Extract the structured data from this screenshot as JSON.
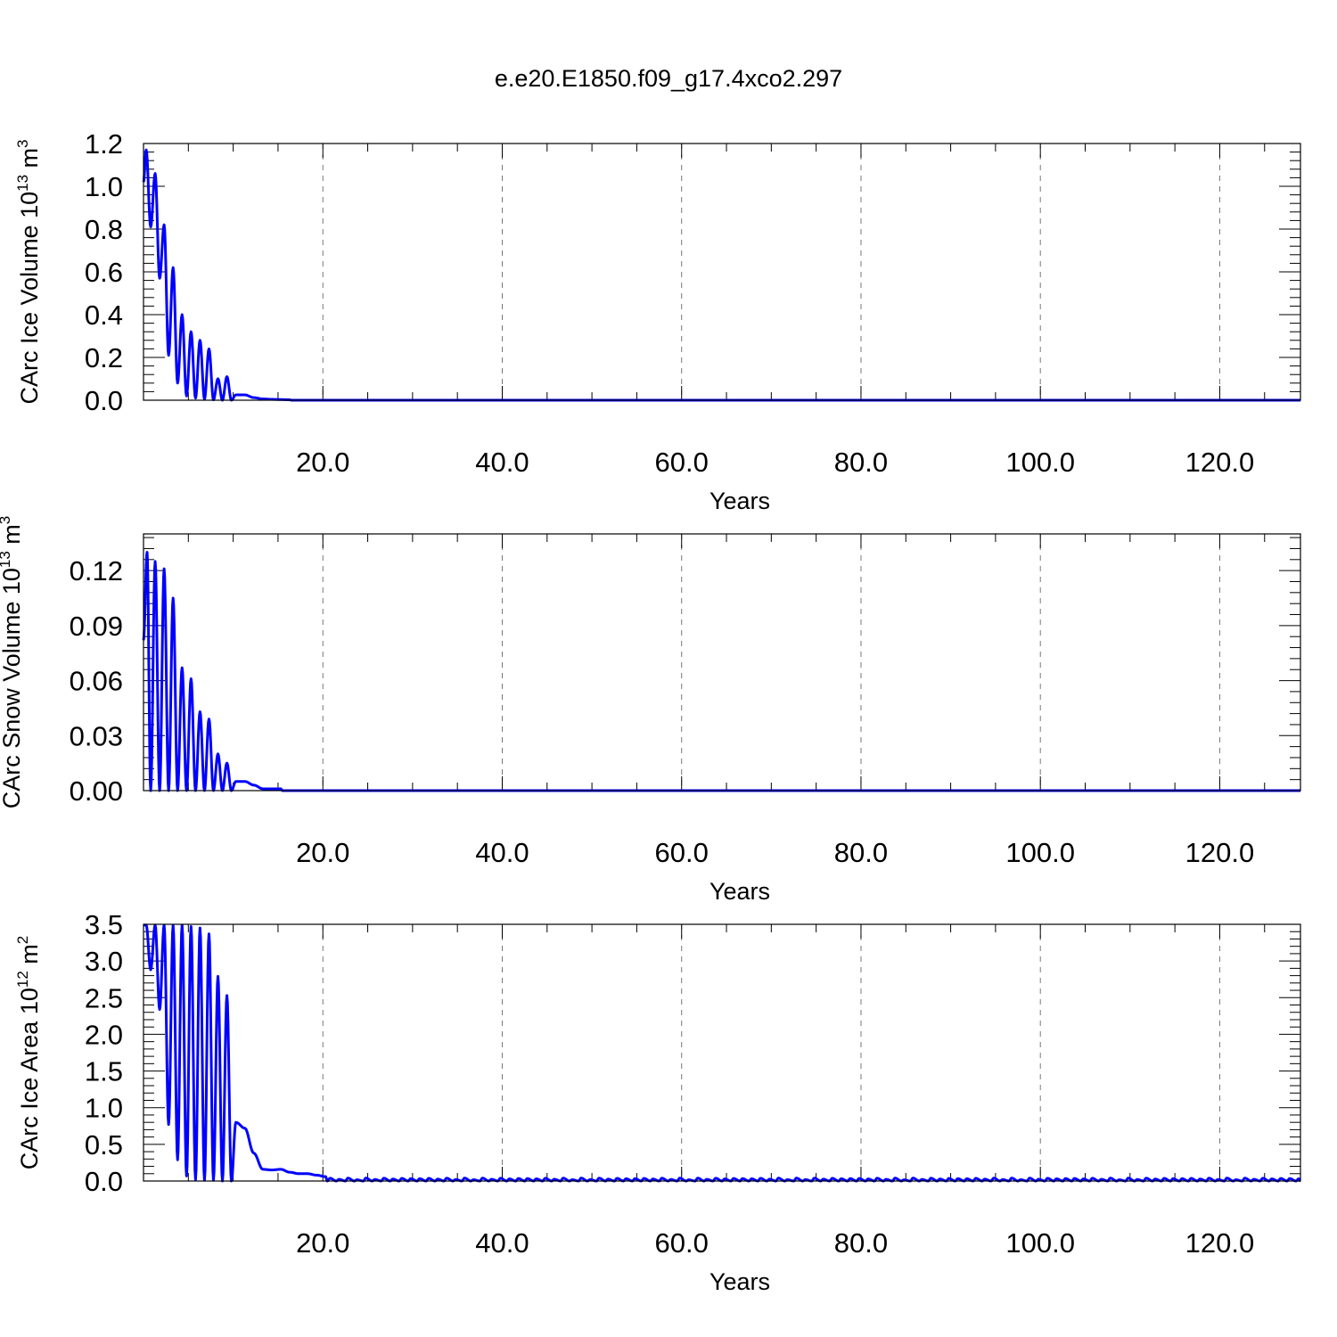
{
  "title": "e.e20.E1850.f09_g17.4xco2.297",
  "colors": {
    "series": "#0000ff",
    "axis": "#000000",
    "grid": "#777777"
  },
  "chart_data": [
    {
      "type": "line",
      "xlabel": "Years",
      "ylabel": "CArc Ice Volume 10",
      "ylabel_exp": "13",
      "ylabel_unit": " m",
      "ylabel_unit_exp": "3",
      "xlim": [
        0,
        129
      ],
      "ylim": [
        0,
        1.2
      ],
      "x_ticks": [
        "20.0",
        "40.0",
        "60.0",
        "80.0",
        "100.0",
        "120.0"
      ],
      "y_ticks": [
        "0.0",
        "0.2",
        "0.4",
        "0.6",
        "0.8",
        "1.0",
        "1.2"
      ],
      "grid": "vertical dashed at major x ticks",
      "series": [
        {
          "peaks": [
            [
              0.3,
              1.17
            ],
            [
              1.3,
              1.06
            ],
            [
              2.3,
              0.82
            ],
            [
              3.3,
              0.62
            ],
            [
              4.3,
              0.4
            ],
            [
              5.3,
              0.32
            ],
            [
              6.3,
              0.28
            ],
            [
              7.3,
              0.24
            ],
            [
              8.3,
              0.1
            ],
            [
              9.3,
              0.11
            ],
            [
              10.3,
              0.025
            ],
            [
              11.3,
              0.025
            ],
            [
              12.3,
              0.012
            ],
            [
              13.3,
              0.006
            ],
            [
              14.3,
              0.004
            ],
            [
              15.3,
              0.003
            ],
            [
              16.3,
              0.002
            ]
          ],
          "troughs": [
            [
              0.8,
              0.81
            ],
            [
              1.8,
              0.57
            ],
            [
              2.8,
              0.21
            ],
            [
              3.8,
              0.08
            ],
            [
              4.8,
              0.02
            ],
            [
              5.8,
              0.01
            ],
            [
              6.8,
              0.005
            ],
            [
              7.8,
              0.002
            ],
            [
              8.8,
              0.0
            ],
            [
              9.8,
              0.0
            ]
          ],
          "start": 1.02
        }
      ]
    },
    {
      "type": "line",
      "xlabel": "Years",
      "ylabel": "CArc Snow Volume 10",
      "ylabel_exp": "13",
      "ylabel_unit": " m",
      "ylabel_unit_exp": "3",
      "xlim": [
        0,
        129
      ],
      "ylim": [
        0,
        0.14
      ],
      "x_ticks": [
        "20.0",
        "40.0",
        "60.0",
        "80.0",
        "100.0",
        "120.0"
      ],
      "y_ticks": [
        "0.00",
        "0.03",
        "0.06",
        "0.09",
        "0.12"
      ],
      "grid": "vertical dashed at major x ticks",
      "series": [
        {
          "peaks": [
            [
              0.4,
              0.13
            ],
            [
              1.3,
              0.125
            ],
            [
              2.3,
              0.121
            ],
            [
              3.3,
              0.105
            ],
            [
              4.3,
              0.067
            ],
            [
              5.3,
              0.061
            ],
            [
              6.3,
              0.043
            ],
            [
              7.3,
              0.039
            ],
            [
              8.3,
              0.02
            ],
            [
              9.3,
              0.015
            ],
            [
              10.3,
              0.005
            ],
            [
              11.3,
              0.005
            ],
            [
              12.3,
              0.003
            ],
            [
              13.3,
              0.001
            ],
            [
              14.3,
              0.001
            ],
            [
              15.3,
              0.001
            ]
          ],
          "troughs": [
            [
              0.8,
              0.0
            ],
            [
              1.8,
              0.0
            ],
            [
              2.8,
              0.0
            ],
            [
              3.8,
              0.0
            ],
            [
              4.8,
              0.0
            ],
            [
              5.8,
              0.0
            ],
            [
              6.8,
              0.0
            ],
            [
              7.8,
              0.0
            ],
            [
              8.8,
              0.0
            ],
            [
              9.8,
              0.0
            ]
          ],
          "start": 0.082
        }
      ]
    },
    {
      "type": "line",
      "xlabel": "Years",
      "ylabel": "CArc Ice Area 10",
      "ylabel_exp": "12",
      "ylabel_unit": " m",
      "ylabel_unit_exp": "2",
      "xlim": [
        0,
        129
      ],
      "ylim": [
        0,
        3.5
      ],
      "x_ticks": [
        "20.0",
        "40.0",
        "60.0",
        "80.0",
        "100.0",
        "120.0"
      ],
      "y_ticks": [
        "0.0",
        "0.5",
        "1.0",
        "1.5",
        "2.0",
        "2.5",
        "3.0",
        "3.5"
      ],
      "grid": "vertical dashed at major x ticks",
      "series": [
        {
          "peaks": [
            [
              0.3,
              3.49
            ],
            [
              1.3,
              3.49
            ],
            [
              2.3,
              3.49
            ],
            [
              3.3,
              3.49
            ],
            [
              4.3,
              3.49
            ],
            [
              5.3,
              3.47
            ],
            [
              6.3,
              3.45
            ],
            [
              7.3,
              3.37
            ],
            [
              8.3,
              2.79
            ],
            [
              9.3,
              2.53
            ],
            [
              10.3,
              0.8
            ],
            [
              11.3,
              0.72
            ],
            [
              12.3,
              0.38
            ],
            [
              13.3,
              0.16
            ],
            [
              14.3,
              0.15
            ],
            [
              15.3,
              0.16
            ],
            [
              16.3,
              0.12
            ],
            [
              17.3,
              0.1
            ],
            [
              18.3,
              0.1
            ],
            [
              19.3,
              0.08
            ],
            [
              20.3,
              0.06
            ]
          ],
          "troughs": [
            [
              0.8,
              2.88
            ],
            [
              1.8,
              2.34
            ],
            [
              2.8,
              0.77
            ],
            [
              3.8,
              0.29
            ],
            [
              4.8,
              0.07
            ],
            [
              5.8,
              0.02
            ],
            [
              6.8,
              0.01
            ],
            [
              7.8,
              0.01
            ],
            [
              8.8,
              0.0
            ],
            [
              9.8,
              0.0
            ]
          ],
          "start": 3.49,
          "tail_peak_level": 0.04
        }
      ]
    }
  ]
}
